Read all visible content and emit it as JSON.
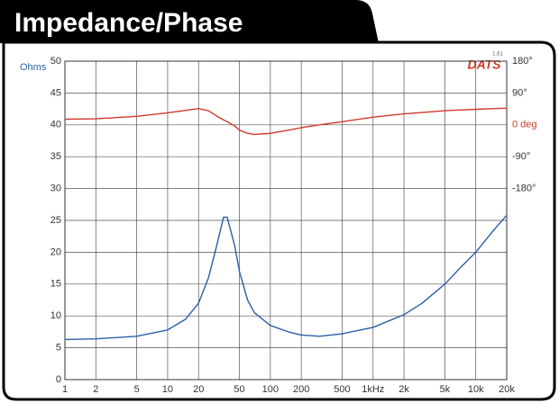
{
  "chart_data": {
    "type": "line",
    "title": "Impedance/Phase",
    "ylabel": "Ohms",
    "logo": "DATS",
    "logo_version": "1.61",
    "xscale": "log",
    "xlim": [
      1,
      20000
    ],
    "xticks": [
      1,
      2,
      5,
      10,
      20,
      50,
      100,
      200,
      500,
      {
        "value": 1000,
        "label": "1kHz"
      },
      {
        "value": 2000,
        "label": "2k"
      },
      {
        "value": 5000,
        "label": "5k"
      },
      {
        "value": 10000,
        "label": "10k"
      },
      {
        "value": 20000,
        "label": "20k"
      }
    ],
    "ylim": [
      0,
      50
    ],
    "yticks": [
      0,
      5,
      10,
      15,
      20,
      25,
      30,
      35,
      40,
      45,
      50
    ],
    "y2lim": [
      -720,
      180
    ],
    "y2ticks": [
      {
        "value": 180,
        "label": "180°"
      },
      {
        "value": 90,
        "label": "90°"
      },
      {
        "value": 0,
        "label": "0 deg"
      },
      {
        "value": -90,
        "label": "-90°"
      },
      {
        "value": -180,
        "label": "-180°"
      }
    ],
    "grid": true,
    "x": [
      1,
      2,
      5,
      10,
      15,
      20,
      25,
      30,
      35,
      38,
      45,
      50,
      60,
      70,
      100,
      150,
      200,
      300,
      500,
      1000,
      2000,
      3000,
      5000,
      7000,
      10000,
      15000,
      20000
    ],
    "series": [
      {
        "color": "#2b5fa8",
        "values": [
          6.3,
          6.4,
          6.8,
          7.8,
          9.5,
          12,
          16,
          21,
          25.5,
          25.5,
          21,
          17,
          12.5,
          10.5,
          8.5,
          7.5,
          7,
          6.8,
          7.2,
          8.2,
          10.2,
          12,
          15,
          17.5,
          20,
          23.5,
          25.8
        ]
      },
      {
        "color": "#d03a2a",
        "axis": "y2",
        "values": [
          16,
          17,
          24,
          34,
          41,
          46,
          40,
          25,
          14,
          9,
          -3,
          -15,
          -24,
          -27,
          -24,
          -15,
          -8,
          0,
          9,
          22,
          31,
          35,
          40,
          42,
          44,
          46,
          47
        ]
      }
    ]
  }
}
